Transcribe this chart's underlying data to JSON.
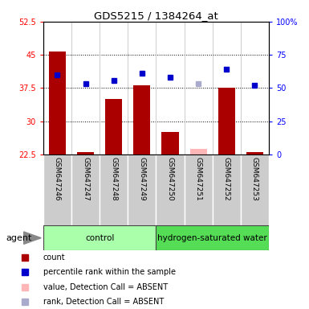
{
  "title": "GDS5215 / 1384264_at",
  "samples": [
    "GSM647246",
    "GSM647247",
    "GSM647248",
    "GSM647249",
    "GSM647250",
    "GSM647251",
    "GSM647252",
    "GSM647253"
  ],
  "bar_values": [
    45.8,
    23.1,
    35.0,
    38.1,
    27.5,
    23.8,
    37.5,
    23.1
  ],
  "bar_absent": [
    false,
    false,
    false,
    false,
    false,
    true,
    false,
    false
  ],
  "rank_values": [
    60,
    53,
    56,
    61,
    58,
    53,
    64,
    52
  ],
  "rank_absent": [
    false,
    false,
    false,
    false,
    false,
    true,
    false,
    false
  ],
  "bar_color_present": "#AA0000",
  "bar_color_absent": "#FFB6B6",
  "rank_color_present": "#0000CC",
  "rank_color_absent": "#AAAACC",
  "ylim_left": [
    22.5,
    52.5
  ],
  "ylim_right": [
    0,
    100
  ],
  "yticks_left": [
    22.5,
    30.0,
    37.5,
    45.0,
    52.5
  ],
  "yticks_right": [
    0,
    25,
    50,
    75,
    100
  ],
  "ytick_labels_left": [
    "22.5",
    "30",
    "37.5",
    "45",
    "52.5"
  ],
  "ytick_labels_right": [
    "0",
    "25",
    "50",
    "75",
    "100%"
  ],
  "groups": [
    {
      "label": "control",
      "indices": [
        0,
        1,
        2,
        3
      ],
      "color": "#AAFFAA"
    },
    {
      "label": "hydrogen-saturated water",
      "indices": [
        4,
        5,
        6,
        7
      ],
      "color": "#55DD55"
    }
  ],
  "agent_label": "agent",
  "legend_items": [
    {
      "label": "count",
      "color": "#AA0000"
    },
    {
      "label": "percentile rank within the sample",
      "color": "#0000CC"
    },
    {
      "label": "value, Detection Call = ABSENT",
      "color": "#FFB6B6"
    },
    {
      "label": "rank, Detection Call = ABSENT",
      "color": "#AAAACC"
    }
  ],
  "bar_width": 0.6,
  "rank_marker_size": 5
}
